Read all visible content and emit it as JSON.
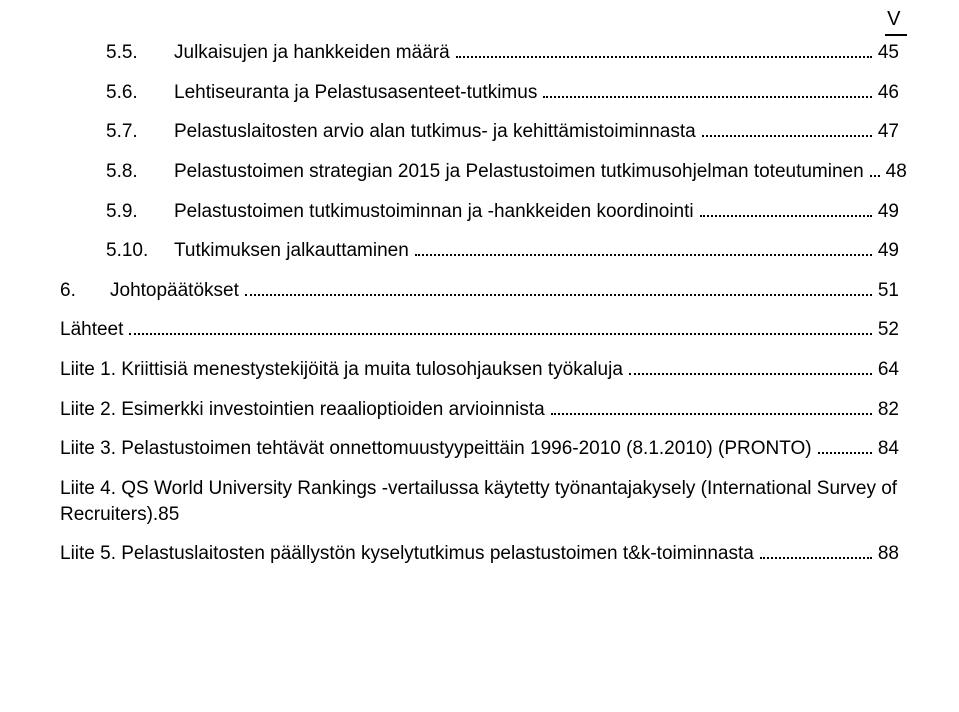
{
  "page_marker": "V",
  "entries": [
    {
      "level": 2,
      "num": "5.5.",
      "title": "Julkaisujen ja hankkeiden määrä",
      "page": "45"
    },
    {
      "level": 2,
      "num": "5.6.",
      "title": "Lehtiseuranta ja Pelastusasenteet-tutkimus",
      "page": "46"
    },
    {
      "level": 2,
      "num": "5.7.",
      "title": "Pelastuslaitosten arvio alan tutkimus- ja kehittämistoiminnasta",
      "page": "47"
    },
    {
      "level": 2,
      "num": "5.8.",
      "title": "Pelastustoimen strategian 2015 ja Pelastustoimen tutkimusohjelman toteutuminen",
      "page": "48"
    },
    {
      "level": 2,
      "num": "5.9.",
      "title": "Pelastustoimen tutkimustoiminnan ja -hankkeiden koordinointi",
      "page": "49"
    },
    {
      "level": 2,
      "num": "5.10.",
      "title": "Tutkimuksen jalkauttaminen",
      "page": "49"
    },
    {
      "level": 1,
      "num": "6.",
      "title": "Johtopäätökset",
      "page": "51"
    },
    {
      "level": 1,
      "num": "",
      "title": "Lähteet",
      "page": "52"
    },
    {
      "level": 1,
      "num": "",
      "title": "Liite 1. Kriittisiä menestystekijöitä ja muita tulosohjauksen työkaluja",
      "page": "64"
    },
    {
      "level": 1,
      "num": "",
      "title": "Liite 2. Esimerkki investointien reaalioptioiden arvioinnista",
      "page": "82"
    },
    {
      "level": 1,
      "num": "",
      "title": "Liite 3. Pelastustoimen tehtävät onnettomuustyypeittäin 1996-2010 (8.1.2010) (PRONTO)",
      "page": "84"
    },
    {
      "level": 1,
      "num": "",
      "title": "Liite 4. QS World University Rankings -vertailussa käytetty työnantajakysely (International Survey of Recruiters)",
      "page": "85",
      "no_leader": true
    },
    {
      "level": 1,
      "num": "",
      "title": "Liite 5. Pelastuslaitosten päällystön kyselytutkimus pelastustoimen t&k-toiminnasta",
      "page": "88"
    }
  ]
}
